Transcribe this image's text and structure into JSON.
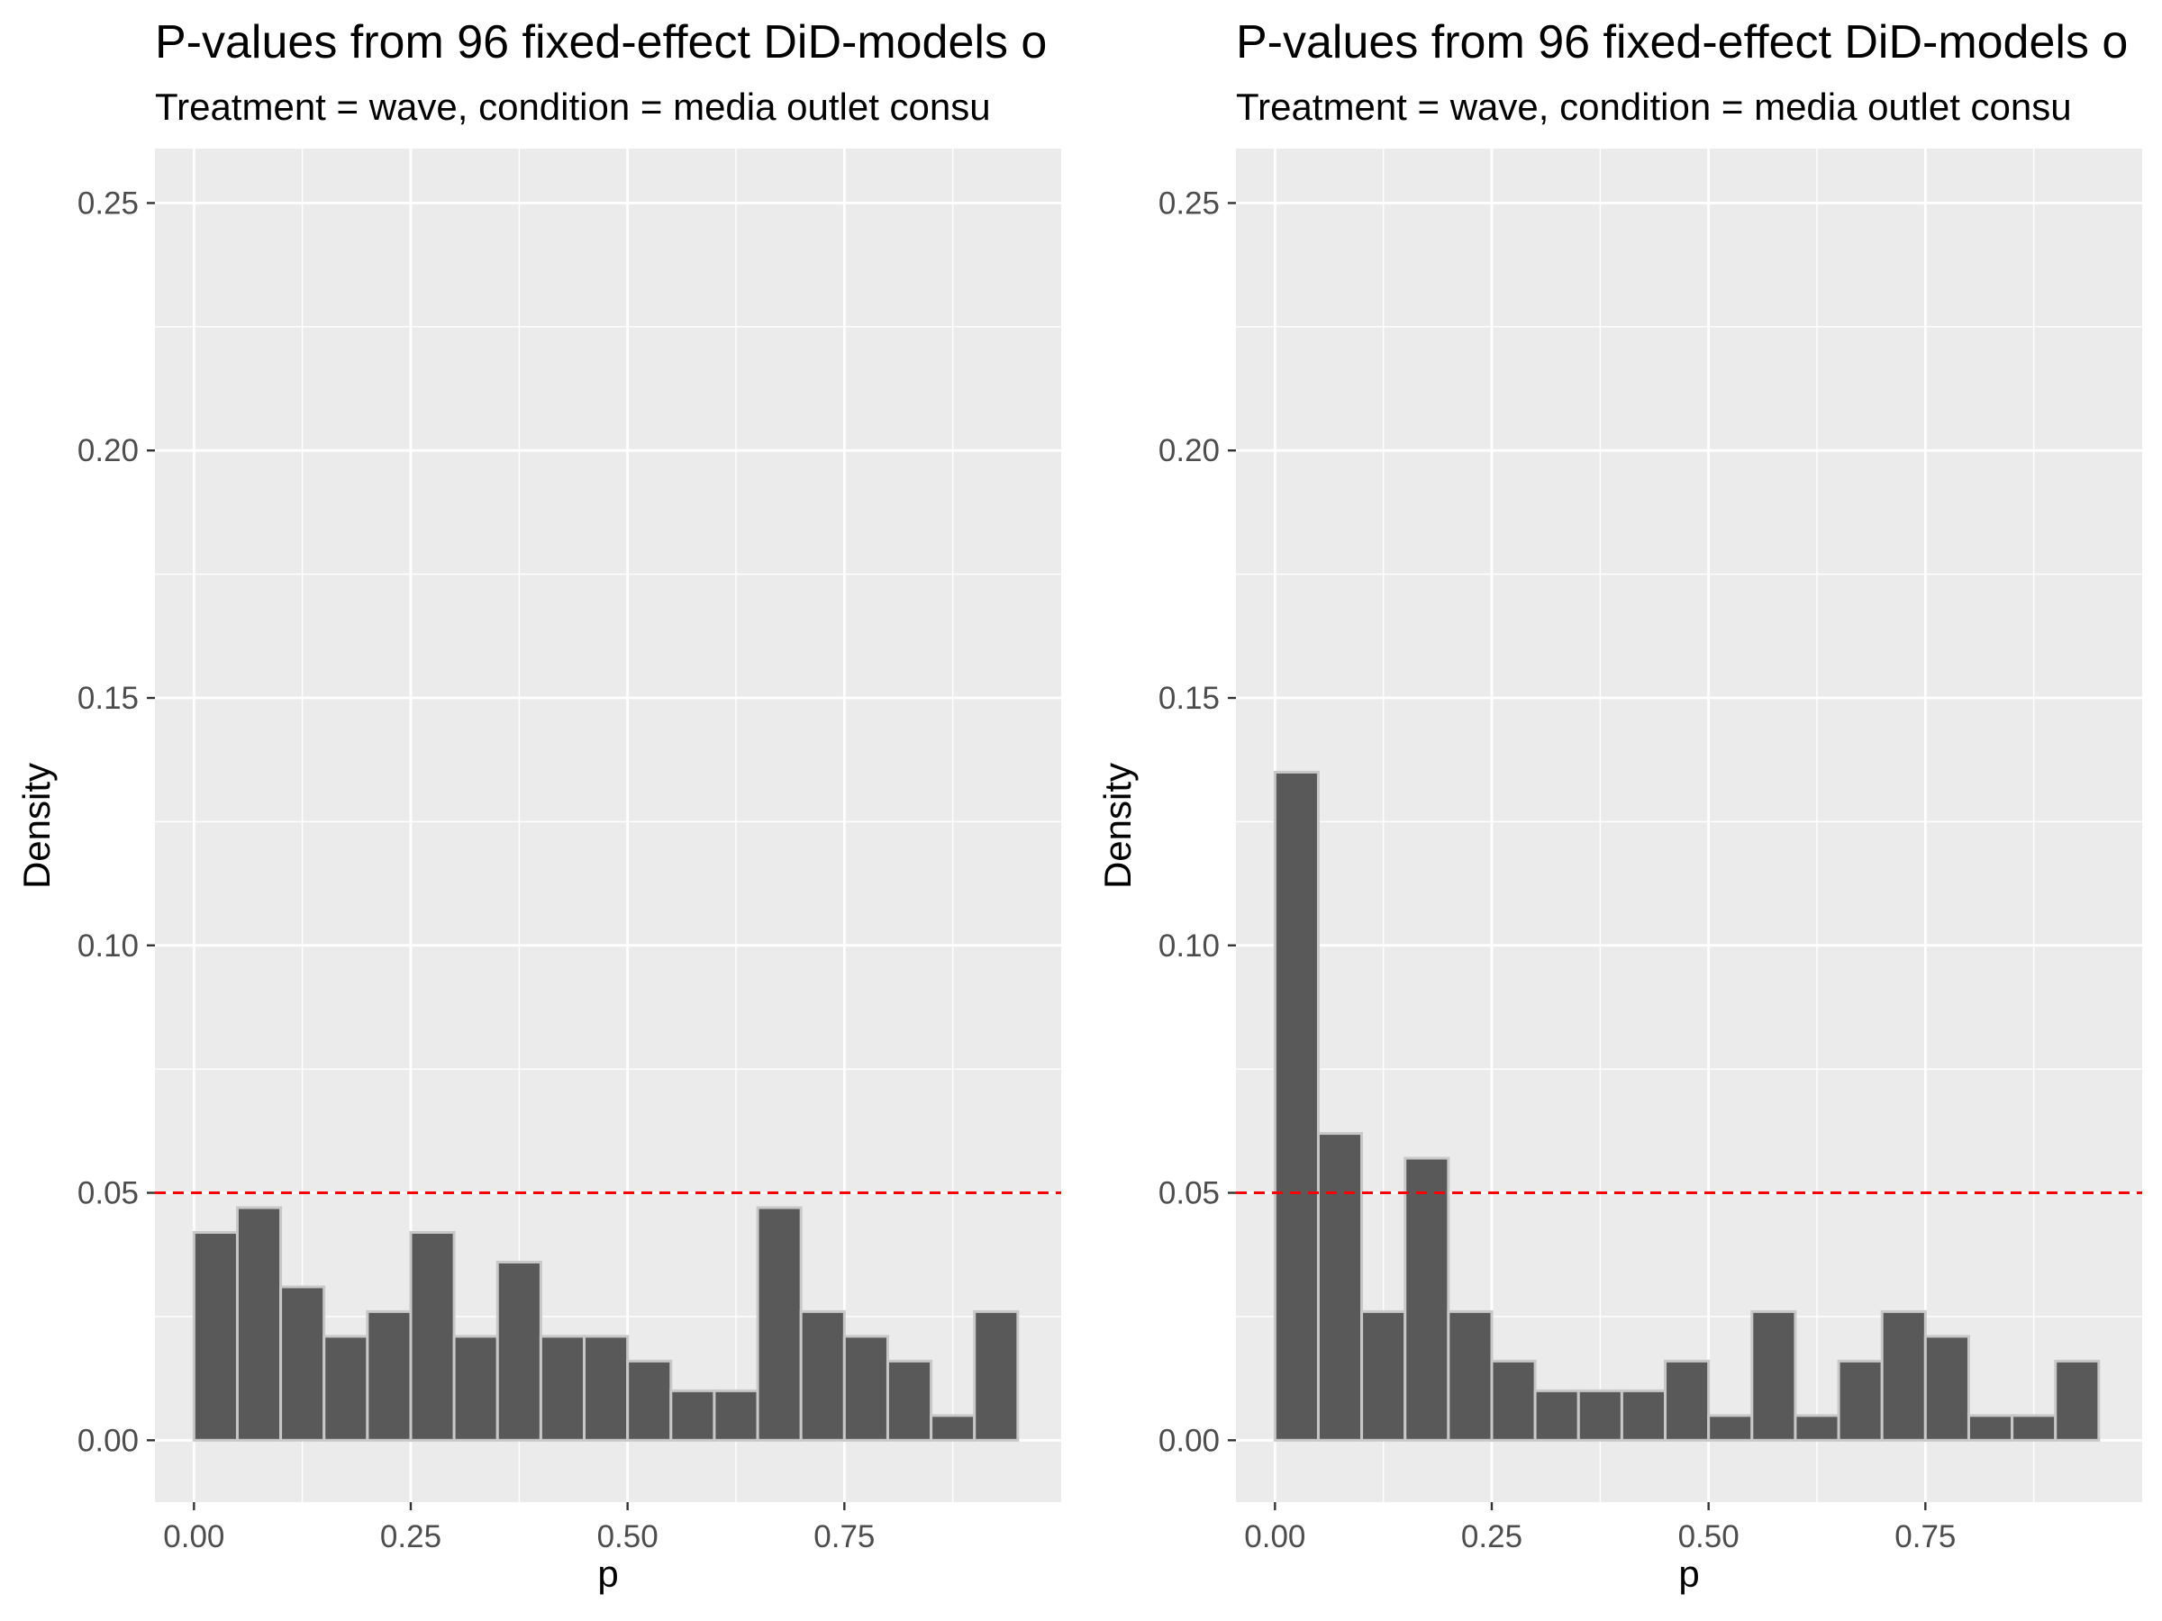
{
  "chart_data": [
    {
      "type": "bar",
      "title": "P-values from 96 fixed-effect DiD-models o",
      "subtitle": "Treatment = wave, condition = media outlet consu",
      "xlabel": "p",
      "ylabel": "Density",
      "xlim": [
        -0.045,
        1.0
      ],
      "ylim": [
        -0.0125,
        0.261
      ],
      "x_ticks": [
        0.0,
        0.25,
        0.5,
        0.75
      ],
      "x_tick_labels": [
        "0.00",
        "0.25",
        "0.50",
        "0.75"
      ],
      "y_ticks": [
        0.0,
        0.05,
        0.1,
        0.15,
        0.2,
        0.25
      ],
      "y_tick_labels": [
        "0.00",
        "0.05",
        "0.10",
        "0.15",
        "0.20",
        "0.25"
      ],
      "grid": true,
      "bin_width": 0.05,
      "bin_starts": [
        0.0,
        0.05,
        0.1,
        0.15,
        0.2,
        0.25,
        0.3,
        0.35,
        0.4,
        0.45,
        0.5,
        0.55,
        0.6,
        0.65,
        0.7,
        0.75,
        0.8,
        0.85,
        0.9
      ],
      "values": [
        0.042,
        0.047,
        0.031,
        0.021,
        0.026,
        0.042,
        0.021,
        0.036,
        0.021,
        0.021,
        0.016,
        0.01,
        0.01,
        0.047,
        0.026,
        0.021,
        0.016,
        0.005,
        0.026
      ],
      "reference_line": {
        "y": 0.05,
        "color": "#ff0000",
        "style": "dashed"
      },
      "bar_fill": "#595959",
      "bar_edge": "#c8c8c8",
      "panel_background": "#ebebeb"
    },
    {
      "type": "bar",
      "title": "P-values from 96 fixed-effect DiD-models o",
      "subtitle": "Treatment = wave, condition = media outlet consu",
      "xlabel": "p",
      "ylabel": "Density",
      "xlim": [
        -0.045,
        1.0
      ],
      "ylim": [
        -0.0125,
        0.261
      ],
      "x_ticks": [
        0.0,
        0.25,
        0.5,
        0.75
      ],
      "x_tick_labels": [
        "0.00",
        "0.25",
        "0.50",
        "0.75"
      ],
      "y_ticks": [
        0.0,
        0.05,
        0.1,
        0.15,
        0.2,
        0.25
      ],
      "y_tick_labels": [
        "0.00",
        "0.05",
        "0.10",
        "0.15",
        "0.20",
        "0.25"
      ],
      "grid": true,
      "bin_width": 0.05,
      "bin_starts": [
        0.0,
        0.05,
        0.1,
        0.15,
        0.2,
        0.25,
        0.3,
        0.35,
        0.4,
        0.45,
        0.5,
        0.55,
        0.6,
        0.65,
        0.7,
        0.75,
        0.8,
        0.85,
        0.9
      ],
      "values": [
        0.135,
        0.062,
        0.026,
        0.057,
        0.026,
        0.016,
        0.01,
        0.01,
        0.01,
        0.016,
        0.005,
        0.026,
        0.005,
        0.016,
        0.026,
        0.021,
        0.005,
        0.005,
        0.016
      ],
      "reference_line": {
        "y": 0.05,
        "color": "#ff0000",
        "style": "dashed"
      },
      "bar_fill": "#595959",
      "bar_edge": "#c8c8c8",
      "panel_background": "#ebebeb"
    }
  ]
}
